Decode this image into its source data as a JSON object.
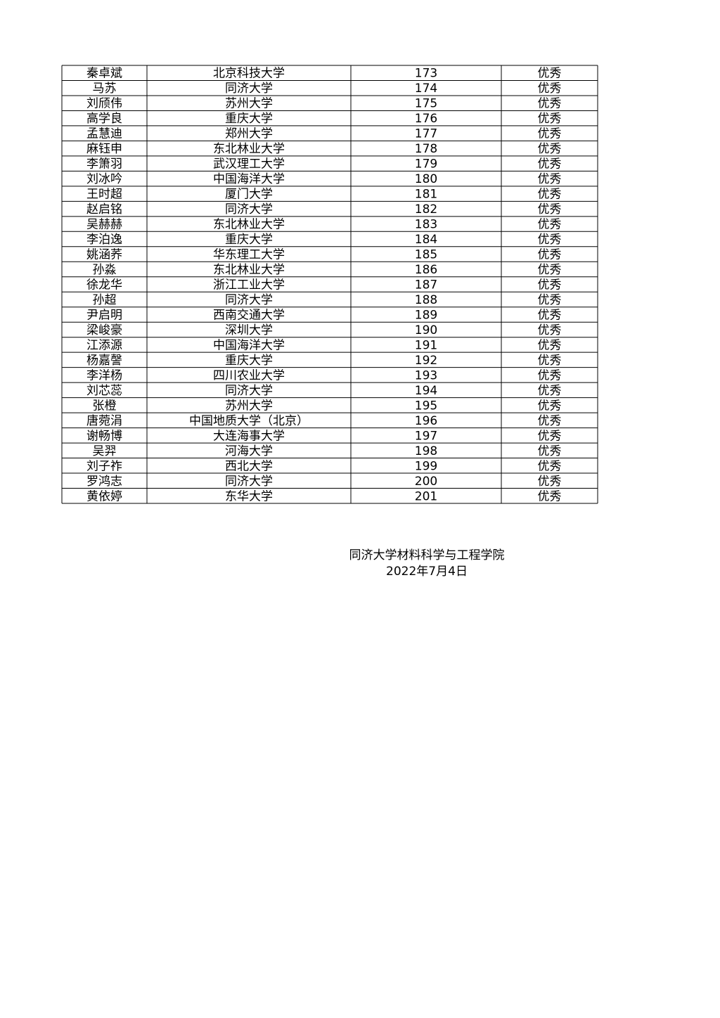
{
  "table": {
    "rows": [
      [
        "秦卓斌",
        "北京科技大学",
        173,
        "优秀"
      ],
      [
        "马苏",
        "同济大学",
        174,
        "优秀"
      ],
      [
        "刘颀伟",
        "苏州大学",
        175,
        "优秀"
      ],
      [
        "高学良",
        "重庆大学",
        176,
        "优秀"
      ],
      [
        "孟慧迪",
        "郑州大学",
        177,
        "优秀"
      ],
      [
        "麻钰申",
        "东北林业大学",
        178,
        "优秀"
      ],
      [
        "李箫羽",
        "武汉理工大学",
        179,
        "优秀"
      ],
      [
        "刘冰吟",
        "中国海洋大学",
        180,
        "优秀"
      ],
      [
        "王时超",
        "厦门大学",
        181,
        "优秀"
      ],
      [
        "赵启铭",
        "同济大学",
        182,
        "优秀"
      ],
      [
        "吴赫赫",
        "东北林业大学",
        183,
        "优秀"
      ],
      [
        "李泊逸",
        "重庆大学",
        184,
        "优秀"
      ],
      [
        "姚涵荞",
        "华东理工大学",
        185,
        "优秀"
      ],
      [
        "孙淼",
        "东北林业大学",
        186,
        "优秀"
      ],
      [
        "徐龙华",
        "浙江工业大学",
        187,
        "优秀"
      ],
      [
        "孙超",
        "同济大学",
        188,
        "优秀"
      ],
      [
        "尹启明",
        "西南交通大学",
        189,
        "优秀"
      ],
      [
        "梁峻豪",
        "深圳大学",
        190,
        "优秀"
      ],
      [
        "江添源",
        "中国海洋大学",
        191,
        "优秀"
      ],
      [
        "杨嘉謦",
        "重庆大学",
        192,
        "优秀"
      ],
      [
        "李洋杨",
        "四川农业大学",
        193,
        "优秀"
      ],
      [
        "刘芯蕊",
        "同济大学",
        194,
        "优秀"
      ],
      [
        "张橙",
        "苏州大学",
        195,
        "优秀"
      ],
      [
        "唐菀涓",
        "中国地质大学（北京）",
        196,
        "优秀"
      ],
      [
        "谢畅博",
        "大连海事大学",
        197,
        "优秀"
      ],
      [
        "吴羿",
        "河海大学",
        198,
        "优秀"
      ],
      [
        "刘子祚",
        "西北大学",
        199,
        "优秀"
      ],
      [
        "罗鸿志",
        "同济大学",
        200,
        "优秀"
      ],
      [
        "黄依婷",
        "东华大学",
        201,
        "优秀"
      ]
    ]
  },
  "footer": {
    "organization": "同济大学材料科学与工程学院",
    "date": "2022年7月4日"
  }
}
